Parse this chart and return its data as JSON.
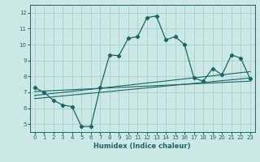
{
  "title": "",
  "xlabel": "Humidex (Indice chaleur)",
  "bg_color": "#cce8e4",
  "grid_color": "#aad4d0",
  "line_color": "#1a6666",
  "xlim": [
    -0.5,
    23.5
  ],
  "ylim": [
    4.5,
    12.5
  ],
  "xticks": [
    0,
    1,
    2,
    3,
    4,
    5,
    6,
    7,
    8,
    9,
    10,
    11,
    12,
    13,
    14,
    15,
    16,
    17,
    18,
    19,
    20,
    21,
    22,
    23
  ],
  "yticks": [
    5,
    6,
    7,
    8,
    9,
    10,
    11,
    12
  ],
  "main_curve_x": [
    0,
    1,
    2,
    3,
    4,
    5,
    6,
    7,
    8,
    9,
    10,
    11,
    12,
    13,
    14,
    15,
    16,
    17,
    18,
    19,
    20,
    21,
    22,
    23
  ],
  "main_curve_y": [
    7.3,
    7.0,
    6.5,
    6.2,
    6.1,
    4.85,
    4.85,
    7.3,
    9.35,
    9.3,
    10.4,
    10.5,
    11.7,
    11.8,
    10.3,
    10.5,
    10.0,
    7.9,
    7.7,
    8.5,
    8.1,
    9.35,
    9.15,
    7.85
  ],
  "line1_x": [
    0,
    23
  ],
  "line1_y": [
    6.6,
    7.9
  ],
  "line2_x": [
    0,
    23
  ],
  "line2_y": [
    6.8,
    8.3
  ],
  "line3_x": [
    0,
    23
  ],
  "line3_y": [
    7.05,
    7.7
  ]
}
